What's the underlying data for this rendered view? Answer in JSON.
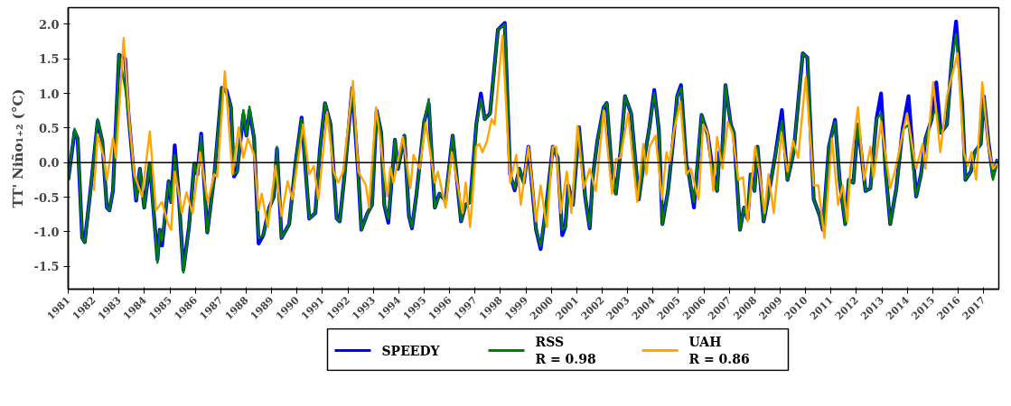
{
  "chart_data": {
    "type": "line",
    "ylabel": "TT' Niño₁₊₂ (°C)",
    "xlim": [
      1981,
      2017.6
    ],
    "ylim": [
      -1.83,
      2.24
    ],
    "xticks": [
      1981,
      1982,
      1983,
      1984,
      1985,
      1986,
      1987,
      1988,
      1989,
      1990,
      1991,
      1992,
      1993,
      1994,
      1995,
      1996,
      1997,
      1998,
      1999,
      2000,
      2001,
      2002,
      2003,
      2004,
      2005,
      2006,
      2007,
      2008,
      2009,
      2010,
      2011,
      2012,
      2013,
      2014,
      2015,
      2016,
      2017
    ],
    "yticks": [
      {
        "value": -1.5,
        "label": "-1.5"
      },
      {
        "value": -1,
        "label": "-1.0"
      },
      {
        "value": -0.5,
        "label": "-0.5"
      },
      {
        "value": 0,
        "label": "0.0"
      },
      {
        "value": 0.5,
        "label": "0.5"
      },
      {
        "value": 1,
        "label": "1.0"
      },
      {
        "value": 1.5,
        "label": "1.5"
      },
      {
        "value": 2,
        "label": "2.0"
      }
    ],
    "grid": false,
    "legend": "bottom",
    "ref_lines": [
      {
        "axis": "y",
        "value": 0,
        "color": "#000000"
      }
    ],
    "series": [
      {
        "name": "SPEEDY",
        "color": "#0000ff",
        "x": [
          1981.0,
          1981.25,
          1981.37,
          1981.55,
          1981.65,
          1981.92,
          1982.16,
          1982.34,
          1982.52,
          1982.62,
          1982.76,
          1983.0,
          1983.24,
          1983.36,
          1983.67,
          1983.82,
          1983.99,
          1984.21,
          1984.51,
          1984.6,
          1984.69,
          1984.95,
          1985.05,
          1985.19,
          1985.35,
          1985.53,
          1985.75,
          1985.96,
          1986.08,
          1986.23,
          1986.47,
          1986.74,
          1987.04,
          1987.22,
          1987.4,
          1987.52,
          1987.64,
          1987.89,
          1988.01,
          1988.13,
          1988.31,
          1988.49,
          1988.67,
          1988.91,
          1989.09,
          1989.21,
          1989.39,
          1989.69,
          1989.94,
          1990.18,
          1990.48,
          1990.72,
          1990.9,
          1991.1,
          1991.32,
          1991.56,
          1991.68,
          1991.86,
          1992.17,
          1992.41,
          1992.53,
          1992.77,
          1992.95,
          1993.13,
          1993.31,
          1993.43,
          1993.59,
          1993.85,
          1993.97,
          1994.22,
          1994.4,
          1994.52,
          1994.7,
          1995.0,
          1995.18,
          1995.42,
          1995.6,
          1995.84,
          1996.12,
          1996.45,
          1996.63,
          1996.81,
          1997.05,
          1997.23,
          1997.38,
          1997.59,
          1997.9,
          1998.17,
          1998.38,
          1998.56,
          1998.74,
          1998.92,
          1999.1,
          1999.4,
          1999.58,
          1999.82,
          2000.06,
          2000.25,
          2000.43,
          2000.55,
          2000.67,
          2000.85,
          2001.09,
          2001.33,
          2001.51,
          2001.63,
          2001.81,
          2002.06,
          2002.18,
          2002.36,
          2002.54,
          2002.72,
          2002.9,
          2003.14,
          2003.44,
          2003.68,
          2003.86,
          2004.05,
          2004.23,
          2004.37,
          2004.59,
          2004.77,
          2004.95,
          2005.1,
          2005.31,
          2005.43,
          2005.61,
          2005.91,
          2006.15,
          2006.34,
          2006.52,
          2006.61,
          2006.7,
          2006.85,
          2007.06,
          2007.18,
          2007.42,
          2007.58,
          2007.72,
          2007.84,
          2007.99,
          2008.11,
          2008.35,
          2008.57,
          2008.81,
          2009.07,
          2009.29,
          2009.53,
          2009.89,
          2010.07,
          2010.32,
          2010.56,
          2010.68,
          2010.92,
          2011.16,
          2011.34,
          2011.56,
          2011.7,
          2011.88,
          2012.06,
          2012.36,
          2012.55,
          2012.79,
          2012.97,
          2013.15,
          2013.33,
          2013.57,
          2013.81,
          2014.05,
          2014.35,
          2014.54,
          2014.72,
          2014.96,
          2015.14,
          2015.32,
          2015.56,
          2015.74,
          2015.92,
          2016.16,
          2016.29,
          2016.5,
          2016.65,
          2016.89,
          2017.01,
          2017.19,
          2017.37,
          2017.55
        ],
        "values": [
          -0.25,
          0.45,
          0.35,
          -1.09,
          -1.15,
          -0.25,
          0.6,
          0.31,
          -0.65,
          -0.69,
          -0.41,
          1.56,
          1.5,
          0.75,
          -0.55,
          -0.09,
          -0.65,
          -0.01,
          -1.4,
          -0.97,
          -1.2,
          -0.27,
          -0.57,
          0.25,
          -0.49,
          -1.55,
          -0.93,
          -0.01,
          -0.17,
          0.42,
          -1.01,
          -0.21,
          1.08,
          1.05,
          0.8,
          -0.2,
          -0.13,
          0.7,
          0.39,
          0.75,
          0.35,
          -1.17,
          -1.05,
          -0.65,
          -0.49,
          0.2,
          -1.09,
          -0.89,
          -0.01,
          0.65,
          -0.81,
          -0.73,
          0.19,
          0.86,
          0.55,
          -0.81,
          -0.85,
          -0.21,
          1.08,
          -0.17,
          -0.97,
          -0.73,
          -0.61,
          0.75,
          0.43,
          -0.61,
          -0.87,
          0.33,
          -0.09,
          0.39,
          -0.77,
          -0.95,
          -0.45,
          0.59,
          0.85,
          -0.65,
          -0.45,
          -0.55,
          0.39,
          -0.85,
          -0.61,
          -0.57,
          0.55,
          1.0,
          0.63,
          0.71,
          1.92,
          2.02,
          -0.17,
          -0.4,
          -0.09,
          -0.29,
          0.23,
          -0.97,
          -1.25,
          -0.57,
          0.23,
          0.07,
          -1.05,
          -0.93,
          -0.33,
          -0.61,
          0.51,
          -0.49,
          -0.95,
          -0.21,
          0.31,
          0.8,
          0.86,
          -0.01,
          -0.45,
          0.15,
          0.96,
          0.71,
          -0.53,
          0.11,
          0.51,
          1.05,
          0.47,
          -0.89,
          -0.41,
          0.23,
          0.96,
          1.12,
          -0.01,
          -0.21,
          -0.65,
          0.69,
          0.41,
          -0.09,
          -0.41,
          0.15,
          -0.01,
          1.12,
          0.55,
          0.43,
          -0.97,
          -0.65,
          -0.81,
          -0.17,
          -0.41,
          0.23,
          -0.85,
          -0.41,
          0.11,
          0.76,
          -0.25,
          0.15,
          1.58,
          1.52,
          -0.53,
          -0.77,
          -0.97,
          0.23,
          0.62,
          -0.25,
          -0.89,
          -0.25,
          -0.29,
          0.55,
          -0.41,
          -0.37,
          0.63,
          1.0,
          -0.13,
          -0.89,
          -0.37,
          0.47,
          0.96,
          -0.49,
          -0.17,
          0.35,
          0.63,
          1.16,
          0.43,
          0.55,
          1.44,
          2.04,
          0.84,
          -0.25,
          -0.13,
          0.15,
          0.27,
          0.96,
          0.31,
          -0.2,
          0.05
        ]
      },
      {
        "name": "RSS\nR = 0.98",
        "color": "#008000",
        "x": [
          1981.0,
          1981.25,
          1981.37,
          1981.55,
          1981.65,
          1981.92,
          1982.16,
          1982.34,
          1982.52,
          1982.62,
          1982.76,
          1983.0,
          1983.24,
          1983.36,
          1983.67,
          1983.82,
          1983.99,
          1984.21,
          1984.51,
          1984.6,
          1984.69,
          1984.95,
          1985.05,
          1985.19,
          1985.35,
          1985.53,
          1985.75,
          1985.96,
          1986.08,
          1986.23,
          1986.47,
          1986.74,
          1987.04,
          1987.22,
          1987.4,
          1987.52,
          1987.64,
          1987.89,
          1988.01,
          1988.13,
          1988.31,
          1988.49,
          1988.67,
          1988.91,
          1989.09,
          1989.21,
          1989.39,
          1989.69,
          1989.94,
          1990.18,
          1990.48,
          1990.72,
          1990.9,
          1991.1,
          1991.32,
          1991.56,
          1991.68,
          1991.86,
          1992.17,
          1992.41,
          1992.53,
          1992.77,
          1992.95,
          1993.13,
          1993.31,
          1993.43,
          1993.59,
          1993.85,
          1993.97,
          1994.22,
          1994.4,
          1994.52,
          1994.7,
          1995.0,
          1995.18,
          1995.42,
          1995.6,
          1995.84,
          1996.12,
          1996.45,
          1996.63,
          1996.81,
          1997.05,
          1997.23,
          1997.38,
          1997.59,
          1997.9,
          1998.17,
          1998.38,
          1998.56,
          1998.74,
          1998.92,
          1999.1,
          1999.4,
          1999.58,
          1999.82,
          2000.06,
          2000.25,
          2000.43,
          2000.55,
          2000.67,
          2000.85,
          2001.09,
          2001.33,
          2001.51,
          2001.63,
          2001.81,
          2002.06,
          2002.18,
          2002.36,
          2002.54,
          2002.72,
          2002.9,
          2003.14,
          2003.44,
          2003.68,
          2003.86,
          2004.05,
          2004.23,
          2004.37,
          2004.59,
          2004.77,
          2004.95,
          2005.1,
          2005.31,
          2005.43,
          2005.61,
          2005.91,
          2006.15,
          2006.34,
          2006.52,
          2006.61,
          2006.7,
          2006.85,
          2007.06,
          2007.18,
          2007.42,
          2007.58,
          2007.72,
          2007.84,
          2007.99,
          2008.11,
          2008.35,
          2008.57,
          2008.81,
          2009.07,
          2009.29,
          2009.53,
          2009.89,
          2010.07,
          2010.32,
          2010.56,
          2010.68,
          2010.92,
          2011.16,
          2011.34,
          2011.56,
          2011.7,
          2011.88,
          2012.06,
          2012.36,
          2012.55,
          2012.79,
          2012.97,
          2013.15,
          2013.33,
          2013.57,
          2013.81,
          2014.05,
          2014.35,
          2014.54,
          2014.72,
          2014.96,
          2015.14,
          2015.32,
          2015.56,
          2015.74,
          2015.92,
          2016.16,
          2016.29,
          2016.5,
          2016.65,
          2016.89,
          2017.01,
          2017.19,
          2017.37,
          2017.55
        ],
        "values": [
          -0.25,
          0.49,
          0.35,
          -1.09,
          -1.15,
          -0.25,
          0.63,
          0.31,
          -0.65,
          -0.69,
          -0.41,
          1.56,
          1.08,
          0.71,
          -0.53,
          -0.09,
          -0.65,
          -0.01,
          -1.45,
          -0.97,
          -1.13,
          -0.27,
          -0.57,
          0.11,
          -0.49,
          -1.59,
          -0.93,
          -0.01,
          -0.17,
          0.39,
          -1.01,
          -0.21,
          1.08,
          1.0,
          0.8,
          -0.17,
          -0.13,
          0.76,
          0.39,
          0.81,
          0.35,
          -1.09,
          -1.05,
          -0.65,
          -0.49,
          0.23,
          -1.09,
          -0.89,
          -0.01,
          0.63,
          -0.81,
          -0.73,
          0.19,
          0.86,
          0.55,
          -0.81,
          -0.85,
          -0.21,
          1.08,
          -0.17,
          -0.97,
          -0.73,
          -0.61,
          0.75,
          0.43,
          -0.61,
          -0.81,
          0.33,
          -0.09,
          0.39,
          -0.77,
          -0.93,
          -0.45,
          0.59,
          0.92,
          -0.65,
          -0.45,
          -0.53,
          0.39,
          -0.85,
          -0.61,
          -0.57,
          0.55,
          0.92,
          0.63,
          0.71,
          1.92,
          2.0,
          -0.17,
          -0.37,
          -0.09,
          -0.29,
          0.23,
          -0.97,
          -1.21,
          -0.57,
          0.23,
          0.07,
          -0.97,
          -0.93,
          -0.33,
          -0.61,
          0.51,
          -0.49,
          -0.93,
          -0.21,
          0.31,
          0.8,
          0.86,
          -0.01,
          -0.45,
          0.15,
          0.96,
          0.71,
          -0.53,
          0.11,
          0.51,
          1.0,
          0.47,
          -0.89,
          -0.41,
          0.23,
          0.96,
          1.08,
          -0.01,
          -0.21,
          -0.57,
          0.69,
          0.41,
          -0.09,
          -0.41,
          0.15,
          -0.01,
          1.12,
          0.55,
          0.43,
          -0.97,
          -0.65,
          -0.81,
          -0.17,
          -0.41,
          0.23,
          -0.85,
          -0.41,
          0.11,
          0.6,
          -0.25,
          0.15,
          1.58,
          1.52,
          -0.53,
          -0.77,
          -0.97,
          0.23,
          0.59,
          -0.25,
          -0.89,
          -0.25,
          -0.29,
          0.55,
          -0.41,
          -0.37,
          0.63,
          0.71,
          -0.13,
          -0.89,
          -0.37,
          0.47,
          0.55,
          -0.49,
          -0.17,
          0.35,
          0.63,
          0.8,
          0.43,
          0.55,
          1.44,
          1.86,
          0.84,
          -0.25,
          -0.13,
          0.15,
          0.27,
          0.96,
          0.31,
          -0.25,
          0.05
        ]
      },
      {
        "name": "UAH\nR = 0.86",
        "color": "#ffa500",
        "x": [
          1982.01,
          1982.16,
          1982.4,
          1982.52,
          1982.76,
          1982.88,
          1983.18,
          1983.42,
          1983.6,
          1983.9,
          1984.21,
          1984.45,
          1984.69,
          1984.93,
          1985.05,
          1985.19,
          1985.35,
          1985.47,
          1985.65,
          1985.89,
          1986.19,
          1986.49,
          1986.74,
          1986.86,
          1987.16,
          1987.46,
          1987.7,
          1987.89,
          1988.07,
          1988.31,
          1988.49,
          1988.61,
          1988.85,
          1989.15,
          1989.39,
          1989.63,
          1989.81,
          1990.24,
          1990.48,
          1990.66,
          1990.84,
          1991.18,
          1991.44,
          1991.62,
          1991.81,
          1992.2,
          1992.41,
          1992.71,
          1992.83,
          1993.11,
          1993.37,
          1993.55,
          1993.67,
          1993.79,
          1994.16,
          1994.46,
          1994.58,
          1994.82,
          1995.06,
          1995.42,
          1995.54,
          1995.84,
          1996.09,
          1996.51,
          1996.63,
          1996.81,
          1997.05,
          1997.17,
          1997.29,
          1997.47,
          1997.65,
          1997.77,
          1998.08,
          1998.38,
          1998.62,
          1998.8,
          1999.1,
          1999.4,
          1999.58,
          1999.82,
          2000.06,
          2000.19,
          2000.37,
          2000.61,
          2000.79,
          2001.03,
          2001.27,
          2001.51,
          2001.75,
          2002.06,
          2002.39,
          2002.54,
          2002.72,
          2003.02,
          2003.38,
          2003.62,
          2003.74,
          2003.86,
          2004.1,
          2004.35,
          2004.53,
          2004.65,
          2004.83,
          2005.07,
          2005.31,
          2005.49,
          2005.79,
          2005.97,
          2006.15,
          2006.37,
          2006.52,
          2006.73,
          2006.94,
          2007.12,
          2007.36,
          2007.54,
          2007.72,
          2008.02,
          2008.2,
          2008.39,
          2008.54,
          2008.75,
          2009.05,
          2009.29,
          2009.51,
          2009.71,
          2010.01,
          2010.32,
          2010.5,
          2010.74,
          2011.04,
          2011.28,
          2011.46,
          2011.64,
          2011.76,
          2012.06,
          2012.3,
          2012.55,
          2012.67,
          2012.97,
          2013.33,
          2013.51,
          2013.99,
          2014.35,
          2014.6,
          2014.72,
          2015.02,
          2015.3,
          2015.56,
          2015.98,
          2016.22,
          2016.38,
          2016.53,
          2016.71,
          2016.95,
          2017.19,
          2017.37,
          2017.55
        ],
        "values": [
          -0.41,
          0.41,
          0.07,
          -0.25,
          0.35,
          0.07,
          1.8,
          0.55,
          -0.17,
          -0.49,
          0.45,
          -0.69,
          -0.57,
          -0.89,
          -0.97,
          -0.13,
          -0.45,
          -0.73,
          -0.43,
          -0.73,
          0.15,
          -0.57,
          -0.17,
          -0.21,
          1.32,
          -0.17,
          0.51,
          0.07,
          0.35,
          0.11,
          -0.69,
          -0.45,
          -0.93,
          -0.05,
          -0.77,
          -0.27,
          -0.53,
          0.55,
          -0.17,
          -0.05,
          -0.53,
          0.73,
          -0.13,
          -0.29,
          -0.13,
          1.18,
          -0.13,
          -0.33,
          -0.65,
          0.8,
          0.03,
          -0.49,
          -0.07,
          -0.29,
          0.37,
          -0.37,
          0.11,
          -0.09,
          0.57,
          -0.29,
          -0.13,
          -0.65,
          0.15,
          -0.73,
          -0.29,
          -0.93,
          0.23,
          0.27,
          0.15,
          0.31,
          0.63,
          0.55,
          1.84,
          -0.29,
          0.11,
          -0.61,
          0.23,
          -0.85,
          -0.33,
          -0.93,
          0.23,
          0.23,
          -0.73,
          -0.13,
          -0.73,
          0.53,
          -0.37,
          -0.09,
          -0.41,
          0.75,
          -0.45,
          0.05,
          0.07,
          0.71,
          -0.57,
          0.27,
          -0.17,
          0.23,
          0.39,
          -0.53,
          0.15,
          -0.01,
          0.47,
          0.88,
          -0.17,
          -0.09,
          -0.53,
          0.55,
          0.43,
          -0.41,
          0.37,
          -0.09,
          0.59,
          0.43,
          -0.25,
          -0.21,
          -0.85,
          0.23,
          -0.17,
          -0.73,
          -0.17,
          -0.73,
          0.43,
          -0.13,
          0.31,
          0.07,
          1.24,
          -0.33,
          -0.33,
          -1.09,
          0.35,
          -0.61,
          -0.33,
          -0.85,
          -0.09,
          0.8,
          -0.25,
          0.23,
          -0.21,
          0.59,
          -0.37,
          -0.13,
          0.71,
          -0.09,
          0.27,
          -0.09,
          1.16,
          0.15,
          0.96,
          1.58,
          0.15,
          -0.05,
          0.15,
          -0.25,
          1.16,
          0.23,
          -0.09,
          -0.01
        ]
      }
    ]
  }
}
